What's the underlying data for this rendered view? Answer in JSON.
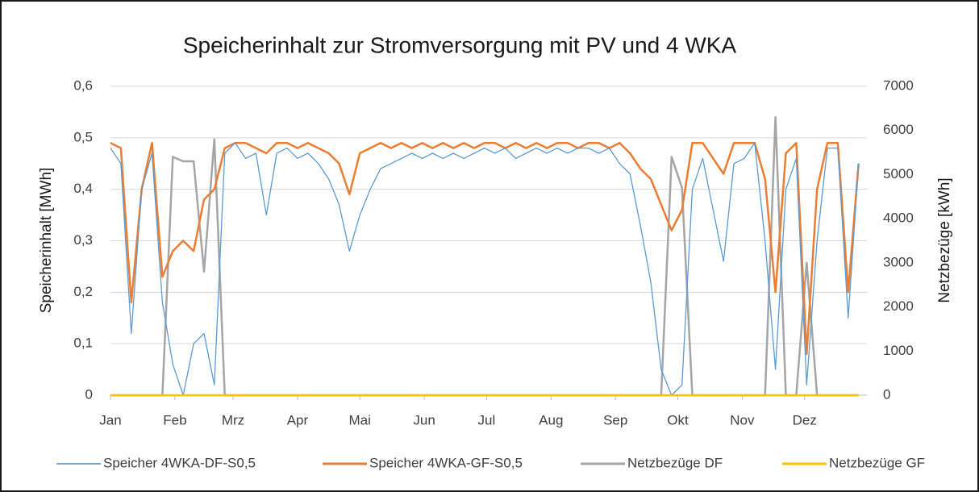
{
  "chart_data": {
    "type": "line",
    "title": "Speicherinhalt zur Stromversorgung mit PV und 4 WKA",
    "y_label": "Speicherinhalt [MWh]",
    "y2_label": "Netzbezüge [kWh]",
    "xlim": [
      1,
      365
    ],
    "xticks": [
      {
        "value": 1,
        "label": "Jan"
      },
      {
        "value": 32,
        "label": "Feb"
      },
      {
        "value": 60,
        "label": "Mrz"
      },
      {
        "value": 91,
        "label": "Apr"
      },
      {
        "value": 121,
        "label": "Mai"
      },
      {
        "value": 152,
        "label": "Jun"
      },
      {
        "value": 182,
        "label": "Jul"
      },
      {
        "value": 213,
        "label": "Aug"
      },
      {
        "value": 244,
        "label": "Sep"
      },
      {
        "value": 274,
        "label": "Okt"
      },
      {
        "value": 305,
        "label": "Nov"
      },
      {
        "value": 335,
        "label": "Dez"
      }
    ],
    "ylim": [
      0,
      0.6
    ],
    "yticks": [
      0,
      {
        "value": 0.1,
        "label": "0,1"
      },
      {
        "value": 0.2,
        "label": "0,2"
      },
      {
        "value": 0.3,
        "label": "0,3"
      },
      {
        "value": 0.4,
        "label": "0,4"
      },
      {
        "value": 0.5,
        "label": "0,5"
      },
      {
        "value": 0.6,
        "label": "0,6"
      }
    ],
    "y2lim": [
      0,
      7000
    ],
    "y2ticks": [
      0,
      1000,
      2000,
      3000,
      4000,
      5000,
      6000,
      7000
    ],
    "grid": true,
    "legend": "bottom",
    "x": [
      1,
      6,
      11,
      16,
      21,
      26,
      31,
      36,
      41,
      46,
      51,
      56,
      61,
      66,
      71,
      76,
      81,
      86,
      91,
      96,
      101,
      106,
      111,
      116,
      121,
      126,
      131,
      136,
      141,
      146,
      151,
      156,
      161,
      166,
      171,
      176,
      181,
      186,
      191,
      196,
      201,
      206,
      211,
      216,
      221,
      226,
      231,
      236,
      241,
      246,
      251,
      256,
      261,
      266,
      271,
      276,
      281,
      286,
      291,
      296,
      301,
      306,
      311,
      316,
      321,
      326,
      331,
      336,
      341,
      346,
      351,
      356,
      361
    ],
    "series": [
      {
        "name": "Speicher 4WKA-DF-S0,5",
        "color": "#5b9bd5",
        "width": 1.3,
        "values": [
          0.48,
          0.45,
          0.12,
          0.4,
          0.47,
          0.18,
          0.06,
          0.0,
          0.1,
          0.12,
          0.02,
          0.47,
          0.49,
          0.46,
          0.47,
          0.35,
          0.47,
          0.48,
          0.46,
          0.47,
          0.45,
          0.42,
          0.37,
          0.28,
          0.35,
          0.4,
          0.44,
          0.45,
          0.46,
          0.47,
          0.46,
          0.47,
          0.46,
          0.47,
          0.46,
          0.47,
          0.48,
          0.47,
          0.48,
          0.46,
          0.47,
          0.48,
          0.47,
          0.48,
          0.47,
          0.48,
          0.48,
          0.47,
          0.48,
          0.45,
          0.43,
          0.33,
          0.22,
          0.05,
          0.0,
          0.02,
          0.4,
          0.46,
          0.36,
          0.26,
          0.45,
          0.46,
          0.49,
          0.3,
          0.05,
          0.4,
          0.46,
          0.02,
          0.3,
          0.48,
          0.48,
          0.15,
          0.45
        ]
      },
      {
        "name": "Speicher 4WKA-GF-S0,5",
        "color": "#ed7d31",
        "width": 2.5,
        "values": [
          0.49,
          0.48,
          0.18,
          0.4,
          0.49,
          0.23,
          0.28,
          0.3,
          0.28,
          0.38,
          0.4,
          0.48,
          0.49,
          0.49,
          0.48,
          0.47,
          0.49,
          0.49,
          0.48,
          0.49,
          0.48,
          0.47,
          0.45,
          0.39,
          0.47,
          0.48,
          0.49,
          0.48,
          0.49,
          0.48,
          0.49,
          0.48,
          0.49,
          0.48,
          0.49,
          0.48,
          0.49,
          0.49,
          0.48,
          0.49,
          0.48,
          0.49,
          0.48,
          0.49,
          0.49,
          0.48,
          0.49,
          0.49,
          0.48,
          0.49,
          0.47,
          0.44,
          0.42,
          0.37,
          0.32,
          0.36,
          0.49,
          0.49,
          0.46,
          0.43,
          0.49,
          0.49,
          0.49,
          0.42,
          0.2,
          0.47,
          0.49,
          0.08,
          0.4,
          0.49,
          0.49,
          0.2,
          0.45
        ]
      },
      {
        "name": "Netzbezüge DF",
        "color": "#a5a5a5",
        "width": 2.5,
        "axis": "y2",
        "values": [
          0,
          0,
          0,
          0,
          0,
          0,
          5400,
          5300,
          5300,
          2800,
          5800,
          0,
          0,
          0,
          0,
          0,
          0,
          0,
          0,
          0,
          0,
          0,
          0,
          0,
          0,
          0,
          0,
          0,
          0,
          0,
          0,
          0,
          0,
          0,
          0,
          0,
          0,
          0,
          0,
          0,
          0,
          0,
          0,
          0,
          0,
          0,
          0,
          0,
          0,
          0,
          0,
          0,
          0,
          0,
          5400,
          4700,
          0,
          0,
          0,
          0,
          0,
          0,
          0,
          0,
          6300,
          0,
          0,
          3000,
          0,
          0,
          0,
          0,
          0
        ]
      },
      {
        "name": "Netzbezüge GF",
        "color": "#ffc000",
        "width": 2.5,
        "axis": "y2",
        "values": [
          0,
          0,
          0,
          0,
          0,
          0,
          0,
          0,
          0,
          0,
          0,
          0,
          0,
          0,
          0,
          0,
          0,
          0,
          0,
          0,
          0,
          0,
          0,
          0,
          0,
          0,
          0,
          0,
          0,
          0,
          0,
          0,
          0,
          0,
          0,
          0,
          0,
          0,
          0,
          0,
          0,
          0,
          0,
          0,
          0,
          0,
          0,
          0,
          0,
          0,
          0,
          0,
          0,
          0,
          0,
          0,
          0,
          0,
          0,
          0,
          0,
          0,
          0,
          0,
          0,
          0,
          0,
          0,
          0,
          0,
          0,
          0,
          0
        ]
      }
    ]
  }
}
